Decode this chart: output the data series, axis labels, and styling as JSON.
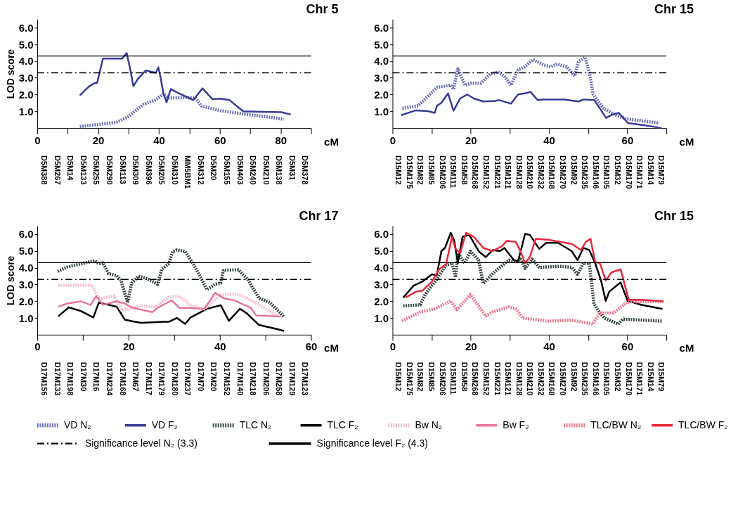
{
  "chart_data": [
    {
      "type": "line",
      "title": "Chr 5",
      "xlabel": "cM",
      "ylabel": "LOD score",
      "legend": "bottom",
      "xlim": [
        0,
        90
      ],
      "ylim": [
        0,
        6.5
      ],
      "xticks": [
        0,
        {
          "value": 10,
          "label": null
        },
        20,
        {
          "value": 30,
          "label": null
        },
        40,
        {
          "value": 50,
          "label": null
        },
        60,
        {
          "value": 70,
          "label": null
        },
        80,
        {
          "value": 90,
          "label": null
        }
      ],
      "yticks": [
        {
          "value": 1,
          "label": "1.0"
        },
        {
          "value": 2,
          "label": "2.0"
        },
        {
          "value": 3,
          "label": "3.0"
        },
        {
          "value": 4,
          "label": "4.0"
        },
        {
          "value": 5,
          "label": "5.0"
        },
        {
          "value": 6,
          "label": "6.0"
        }
      ],
      "ref_lines": [
        {
          "axis": "y",
          "value": 3.3,
          "line_style": "dashed",
          "color": "#000000"
        },
        {
          "axis": "y",
          "value": 4.3,
          "line_style": "solid",
          "color": "#000000"
        }
      ],
      "series": [
        {
          "name": "VD N₂",
          "color": "#7070b8",
          "line_style": "dotted",
          "x": [
            14,
            20.1,
            26,
            29.7,
            34.9,
            38.7,
            41.6,
            43.1,
            49.1,
            52,
            53.9,
            60.2,
            67.7,
            75.1,
            81
          ],
          "values": [
            0.09,
            0.22,
            0.34,
            0.66,
            1.42,
            1.67,
            2.03,
            1.8,
            1.82,
            1.8,
            1.32,
            1.04,
            0.85,
            0.68,
            0.53
          ]
        },
        {
          "name": "VD F₂",
          "color": "#3a3a98",
          "line_style": "solid",
          "x": [
            14,
            17.1,
            19,
            19.7,
            21.6,
            24.5,
            27.9,
            29.4,
            30.5,
            31.6,
            33.1,
            35.7,
            39,
            39.8,
            40.5,
            41.5,
            42.5,
            43.9,
            45.4,
            49.8,
            51.3,
            54.3,
            57.6,
            60.2,
            63.2,
            67.7,
            73.6,
            80.3,
            83.3
          ],
          "values": [
            1.95,
            2.5,
            2.7,
            2.7,
            4.15,
            4.15,
            4.15,
            4.48,
            3.57,
            2.5,
            2.94,
            3.44,
            3.3,
            3.63,
            3.06,
            2.05,
            1.54,
            2.33,
            2.18,
            1.8,
            1.67,
            2.37,
            1.73,
            1.76,
            1.67,
            1.0,
            0.97,
            0.95,
            0.81
          ]
        }
      ],
      "annotations": [
        "D5M388",
        "D5M267",
        "D5M14",
        "D5M133",
        "D5M255",
        "D5M290",
        "D5M113",
        "D5M309",
        "D5M396",
        "D5M205",
        "D5M310",
        "MM5BM1",
        "D5M312",
        "D5M20",
        "D5M155",
        "D5M403",
        "D5M240",
        "D5M210",
        "D5M138",
        "D5M31",
        "D5M378"
      ]
    },
    {
      "type": "line",
      "title": "Chr 15",
      "xlabel": "cM",
      "legend": "bottom",
      "xlim": [
        0,
        70
      ],
      "ylim": [
        0,
        6.5
      ],
      "xticks": [
        0,
        {
          "value": 10,
          "label": null
        },
        20,
        {
          "value": 30,
          "label": null
        },
        40,
        {
          "value": 50,
          "label": null
        },
        60,
        {
          "value": 70,
          "label": null
        }
      ],
      "yticks": [
        {
          "value": 1,
          "label": "1.0"
        },
        {
          "value": 2,
          "label": "2.0"
        },
        {
          "value": 3,
          "label": "3.0"
        },
        {
          "value": 4,
          "label": "4.0"
        },
        {
          "value": 5,
          "label": "5.0"
        },
        {
          "value": 6,
          "label": "6.0"
        }
      ],
      "ref_lines": [
        {
          "axis": "y",
          "value": 3.3,
          "line_style": "dashed",
          "color": "#000000"
        },
        {
          "axis": "y",
          "value": 4.3,
          "line_style": "solid",
          "color": "#000000"
        }
      ],
      "series": [
        {
          "name": "VD N₂",
          "color": "#7070b8",
          "line_style": "dotted",
          "x": [
            2.5,
            6.6,
            11.4,
            14.9,
            15.6,
            16.7,
            18.5,
            20.2,
            22.6,
            25,
            27,
            28.5,
            30.3,
            32.1,
            33.8,
            35.9,
            38.6,
            40.4,
            42.1,
            44.5,
            46.6,
            47.5,
            49.2,
            50.4,
            51.3,
            54,
            57.5,
            59.9,
            68.2
          ],
          "values": [
            1.18,
            1.34,
            2.44,
            2.56,
            2.32,
            3.54,
            2.56,
            2.68,
            2.68,
            3.23,
            3.35,
            3.11,
            2.56,
            3.48,
            3.66,
            4.09,
            3.78,
            3.66,
            3.82,
            3.66,
            3.11,
            3.96,
            4.23,
            3.23,
            2.01,
            1.16,
            0.73,
            0.55,
            0.3
          ]
        },
        {
          "name": "VD F₂",
          "color": "#3a3a98",
          "line_style": "solid",
          "x": [
            2.2,
            6,
            9,
            10.8,
            11.4,
            12.5,
            14.2,
            15.6,
            17.3,
            19.1,
            20.8,
            23.2,
            26.2,
            27.3,
            30.3,
            32.1,
            33.8,
            35.3,
            37.1,
            38.6,
            43.9,
            47.5,
            48.9,
            51.6,
            54.6,
            56,
            57.8,
            60.2,
            64.6,
            68.8
          ],
          "values": [
            0.77,
            1.06,
            1.01,
            0.91,
            1.34,
            1.52,
            2.07,
            1.04,
            1.77,
            2.01,
            1.77,
            1.59,
            1.62,
            1.67,
            1.46,
            2.01,
            2.07,
            2.16,
            1.67,
            1.71,
            1.71,
            1.59,
            1.71,
            1.67,
            0.61,
            0.79,
            0.91,
            0.3,
            0.16,
            0.0
          ]
        }
      ],
      "annotations": [
        "D15M12",
        "D15M175",
        "D15M82",
        "D15M85",
        "D15M206",
        "D15M111",
        "D15M58",
        "D15M268",
        "D15M152",
        "D15M221",
        "D15M121",
        "D15M128",
        "D15M210",
        "D15M232",
        "D15M168",
        "D15M270",
        "D15M92",
        "D15M235",
        "D15M146",
        "D15M105",
        "D15M32",
        "D15M170",
        "D15M171",
        "D15M14",
        "D15M79"
      ]
    },
    {
      "type": "line",
      "title": "Chr 17",
      "xlabel": "cM",
      "ylabel": "LOD score",
      "legend": "bottom",
      "xlim": [
        0,
        60
      ],
      "ylim": [
        0,
        6.5
      ],
      "xticks": [
        0,
        {
          "value": 10,
          "label": null
        },
        20,
        {
          "value": 30,
          "label": null
        },
        40,
        {
          "value": 50,
          "label": null
        },
        60
      ],
      "yticks": [
        {
          "value": 1,
          "label": "1.0"
        },
        {
          "value": 2,
          "label": "2.0"
        },
        {
          "value": 3,
          "label": "3.0"
        },
        {
          "value": 4,
          "label": "4.0"
        },
        {
          "value": 5,
          "label": "5.0"
        },
        {
          "value": 6,
          "label": "6.0"
        }
      ],
      "ref_lines": [
        {
          "axis": "y",
          "value": 3.3,
          "line_style": "dashed",
          "color": "#000000"
        },
        {
          "axis": "y",
          "value": 4.3,
          "line_style": "solid",
          "color": "#000000"
        }
      ],
      "series": [
        {
          "name": "TLC N₂",
          "color": "#3a4a40",
          "line_style": "dotted",
          "x": [
            4.5,
            6.6,
            9.6,
            12.6,
            13.5,
            14.4,
            15.6,
            17.4,
            18.3,
            19.8,
            20.7,
            22.2,
            24,
            26.4,
            27.3,
            28.8,
            29.7,
            30.6,
            32.4,
            34.2,
            37.2,
            39,
            40.2,
            40.8,
            44.1,
            46.2,
            48.6,
            51,
            54
          ],
          "values": [
            3.78,
            4.04,
            4.23,
            4.42,
            4.23,
            4.29,
            3.65,
            3.53,
            3.27,
            1.92,
            3.08,
            3.49,
            3.36,
            3.01,
            3.91,
            4.23,
            4.97,
            5.06,
            4.97,
            4.23,
            2.69,
            3.01,
            3.08,
            3.85,
            3.87,
            3.27,
            2.18,
            1.92,
            1.09
          ]
        },
        {
          "name": "TLC F₂",
          "color": "#000000",
          "line_style": "solid",
          "x": [
            4.6,
            6.9,
            9.6,
            12.3,
            13.5,
            15.6,
            17.4,
            19.2,
            21,
            22.8,
            27.6,
            28.8,
            30.6,
            32.4,
            33.6,
            37.2,
            40.2,
            42,
            44.4,
            45.9,
            48.6,
            52.8,
            54.1
          ],
          "values": [
            1.09,
            1.63,
            1.41,
            1.03,
            1.92,
            1.79,
            1.67,
            0.9,
            0.79,
            0.71,
            0.77,
            0.77,
            1.0,
            0.64,
            1.03,
            1.54,
            1.76,
            0.83,
            1.54,
            1.28,
            0.58,
            0.32,
            0.22
          ]
        },
        {
          "name": "Bw N₂",
          "color": "#f4bfcf",
          "line_style": "dotted",
          "x": [
            4.6,
            12,
            13.5,
            16.8,
            18.6,
            22.8,
            25.8,
            28.8,
            31.2,
            33.6,
            36.6,
            40.2,
            43.8,
            47.4,
            52.8
          ],
          "values": [
            2.95,
            2.95,
            2.12,
            2.31,
            1.47,
            1.73,
            1.67,
            2.24,
            2.31,
            1.73,
            1.54,
            2.37,
            2.44,
            1.99,
            1.09
          ]
        },
        {
          "name": "Bw F₂",
          "color": "#e8759a",
          "line_style": "solid",
          "x": [
            4.6,
            6.6,
            9.6,
            11.7,
            12.9,
            14.4,
            17.4,
            19.2,
            21,
            25.2,
            26.4,
            29.4,
            31.2,
            33,
            36.6,
            39,
            40.8,
            43.2,
            46.8,
            48,
            53.4
          ],
          "values": [
            1.67,
            1.86,
            1.99,
            1.77,
            2.31,
            1.79,
            1.99,
            1.86,
            1.6,
            1.35,
            1.6,
            2.05,
            1.6,
            1.6,
            1.54,
            2.5,
            2.18,
            2.05,
            1.6,
            1.15,
            1.09
          ]
        }
      ],
      "annotations": [
        "D17M156",
        "D17M133",
        "D17M198",
        "D17M30",
        "D17M16",
        "D17M234",
        "D17M168",
        "D17M67",
        "D17M117",
        "D17M179",
        "D17M180",
        "D17M237",
        "D17M70",
        "D17M20",
        "D17M152",
        "D17M140",
        "D17M218",
        "D17M206",
        "D17M258",
        "D17M129",
        "D17M123"
      ]
    },
    {
      "type": "line",
      "title": "Chr 15",
      "xlabel": "cM",
      "legend": "bottom",
      "xlim": [
        0,
        70
      ],
      "ylim": [
        0,
        6.5
      ],
      "xticks": [
        0,
        {
          "value": 10,
          "label": null
        },
        20,
        {
          "value": 30,
          "label": null
        },
        40,
        {
          "value": 50,
          "label": null
        },
        60,
        {
          "value": 70,
          "label": null
        }
      ],
      "yticks": [
        {
          "value": 1,
          "label": "1.0"
        },
        {
          "value": 2,
          "label": "2.0"
        },
        {
          "value": 3,
          "label": "3.0"
        },
        {
          "value": 4,
          "label": "4.0"
        },
        {
          "value": 5,
          "label": "5.0"
        },
        {
          "value": 6,
          "label": "6.0"
        }
      ],
      "ref_lines": [
        {
          "axis": "y",
          "value": 3.3,
          "label": "Significance level N₂ (3.3)",
          "line_style": "dashed",
          "color": "#000000"
        },
        {
          "axis": "y",
          "value": 4.3,
          "label": "Significance level F₂ (4.3)",
          "line_style": "solid",
          "color": "#000000"
        }
      ],
      "series": [
        {
          "name": "TLC N₂",
          "color": "#3a4a40",
          "line_style": "dotted",
          "x": [
            2.7,
            7.1,
            8.3,
            11.3,
            13.7,
            15.2,
            16.1,
            16.7,
            18.5,
            19.9,
            22,
            23.2,
            26.2,
            29.8,
            31.5,
            32.7,
            33.9,
            35.7,
            37.5,
            42.9,
            45.8,
            47.3,
            48.8,
            50.3,
            51.5,
            53,
            54.2,
            57.7,
            58.9,
            69
          ],
          "values": [
            1.72,
            1.78,
            2.39,
            3.3,
            4.15,
            4.27,
            3.42,
            4.87,
            4.27,
            4.99,
            4.45,
            3.05,
            3.78,
            4.45,
            4.33,
            4.51,
            3.96,
            4.51,
            4.02,
            4.08,
            4.02,
            3.6,
            4.27,
            4.27,
            1.84,
            1.3,
            0.99,
            0.63,
            0.93,
            0.81
          ]
        },
        {
          "name": "TLC F₂",
          "color": "#000000",
          "line_style": "solid",
          "x": [
            2.7,
            5.4,
            7.7,
            10.1,
            11.3,
            12.5,
            13.4,
            14.9,
            15.8,
            16.7,
            17.9,
            19.6,
            22,
            23.8,
            25.6,
            27.4,
            28.6,
            31,
            32.1,
            33.9,
            35.1,
            37.5,
            39.3,
            42.3,
            45.8,
            47.3,
            48.8,
            50.3,
            51.8,
            53.3,
            54.5,
            55.4,
            58.3,
            60.1,
            63.7,
            69
          ],
          "values": [
            2.21,
            2.93,
            3.18,
            3.6,
            3.54,
            4.99,
            5.18,
            6.08,
            5.6,
            4.27,
            5.84,
            5.96,
            4.99,
            4.63,
            5.05,
            4.99,
            5.18,
            4.45,
            4.39,
            6.02,
            5.96,
            5.12,
            5.48,
            5.48,
            4.99,
            4.45,
            5.18,
            5.05,
            4.27,
            3.24,
            2.02,
            2.57,
            3.12,
            2.02,
            1.78,
            1.54
          ]
        },
        {
          "name": "TLC/BW N₂",
          "color": "#f07890",
          "line_style": "dotted",
          "x": [
            2.4,
            7.1,
            10.7,
            14.9,
            16.4,
            19.9,
            23.8,
            25.6,
            29.8,
            31.5,
            33.3,
            39.9,
            45.8,
            51.2,
            53,
            56.5,
            60.1,
            69.3
          ],
          "values": [
            0.81,
            1.36,
            1.54,
            2.02,
            1.48,
            2.39,
            1.12,
            1.36,
            1.66,
            1.54,
            0.99,
            0.81,
            0.87,
            0.63,
            1.3,
            1.3,
            1.96,
            1.99
          ]
        },
        {
          "name": "TLC/BW F₂",
          "color": "#e8283c",
          "line_style": "solid",
          "x": [
            3.3,
            6,
            7.7,
            10.1,
            11.9,
            13.7,
            15.2,
            16.1,
            17.3,
            18.8,
            20.8,
            23.2,
            25.6,
            28,
            29.2,
            31.5,
            32.7,
            33.9,
            35.1,
            36.6,
            39.9,
            45.8,
            48.2,
            49.4,
            50.6,
            51.8,
            53,
            54.5,
            56,
            58.3,
            60.4,
            63.7,
            69.3
          ],
          "values": [
            2.21,
            2.57,
            2.63,
            3.18,
            3.9,
            4.21,
            5.84,
            5.12,
            4.87,
            6.08,
            5.84,
            5.18,
            4.99,
            5.29,
            5.6,
            5.54,
            4.99,
            4.27,
            4.63,
            5.72,
            5.66,
            5.42,
            5.05,
            5.54,
            5.72,
            4.33,
            4.27,
            3.24,
            3.72,
            3.9,
            2.08,
            2.08,
            1.99
          ]
        }
      ],
      "annotations": [
        "D15M12",
        "D15M175",
        "D15M82",
        "D15M85",
        "D15M206",
        "D15M111",
        "D15M58",
        "D15M268",
        "D15M152",
        "D15M221",
        "D15M121",
        "D15M128",
        "D15M210",
        "D15M232",
        "D15M168",
        "D15M270",
        "D15M92",
        "D15M235",
        "D15M146",
        "D15M105",
        "D15M32",
        "D15M170",
        "D15M171",
        "D15M14",
        "D15M79"
      ]
    }
  ]
}
